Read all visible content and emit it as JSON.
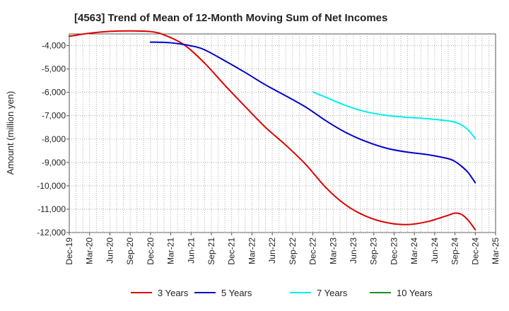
{
  "chart_data": {
    "type": "line",
    "title": "[4563]  Trend of Mean of 12-Month Moving Sum of Net Incomes",
    "xlabel": "",
    "ylabel": "Amount (million yen)",
    "ylim": [
      -12000,
      -3500
    ],
    "yticks": [
      -4000,
      -5000,
      -6000,
      -7000,
      -8000,
      -9000,
      -10000,
      -11000,
      -12000
    ],
    "ytick_labels": [
      "-4,000",
      "-5,000",
      "-6,000",
      "-7,000",
      "-8,000",
      "-9,000",
      "-10,000",
      "-11,000",
      "-12,000"
    ],
    "xlim": [
      0,
      63
    ],
    "x_tick_labels": [
      "Dec-19",
      "Mar-20",
      "Jun-20",
      "Sep-20",
      "Dec-20",
      "Mar-21",
      "Jun-21",
      "Sep-21",
      "Dec-21",
      "Mar-22",
      "Jun-22",
      "Sep-22",
      "Dec-22",
      "Mar-23",
      "Jun-23",
      "Sep-23",
      "Dec-23",
      "Mar-24",
      "Jun-24",
      "Sep-24",
      "Dec-24",
      "Mar-25"
    ],
    "grid": true,
    "legend_position": "bottom",
    "series": [
      {
        "name": "3 Years",
        "color": "#dd0000",
        "x": [
          0,
          3,
          6,
          9,
          12,
          14,
          17,
          20,
          23,
          26,
          29,
          32,
          35,
          38,
          41,
          44,
          47,
          50,
          53,
          56,
          57,
          58,
          59,
          60
        ],
        "values": [
          -3600,
          -3470,
          -3390,
          -3370,
          -3400,
          -3540,
          -3970,
          -4750,
          -5700,
          -6610,
          -7500,
          -8260,
          -9100,
          -10100,
          -10850,
          -11320,
          -11580,
          -11660,
          -11530,
          -11260,
          -11170,
          -11230,
          -11490,
          -11880
        ]
      },
      {
        "name": "5 Years",
        "color": "#0000cc",
        "x": [
          12,
          15,
          18,
          20,
          23,
          26,
          29,
          32,
          35,
          38,
          41,
          44,
          47,
          50,
          53,
          56,
          57,
          58,
          59,
          60
        ],
        "values": [
          -3850,
          -3880,
          -4010,
          -4180,
          -4650,
          -5150,
          -5680,
          -6150,
          -6640,
          -7230,
          -7740,
          -8120,
          -8400,
          -8560,
          -8670,
          -8840,
          -8960,
          -9170,
          -9450,
          -9870
        ]
      },
      {
        "name": "7 Years",
        "color": "#00eeee",
        "x": [
          36,
          38,
          41,
          44,
          47,
          50,
          53,
          56,
          57,
          58,
          59,
          60
        ],
        "values": [
          -5980,
          -6220,
          -6580,
          -6840,
          -6990,
          -7070,
          -7130,
          -7220,
          -7280,
          -7400,
          -7620,
          -7980
        ]
      },
      {
        "name": "10 Years",
        "color": "#228b22",
        "x": [],
        "values": []
      }
    ]
  }
}
